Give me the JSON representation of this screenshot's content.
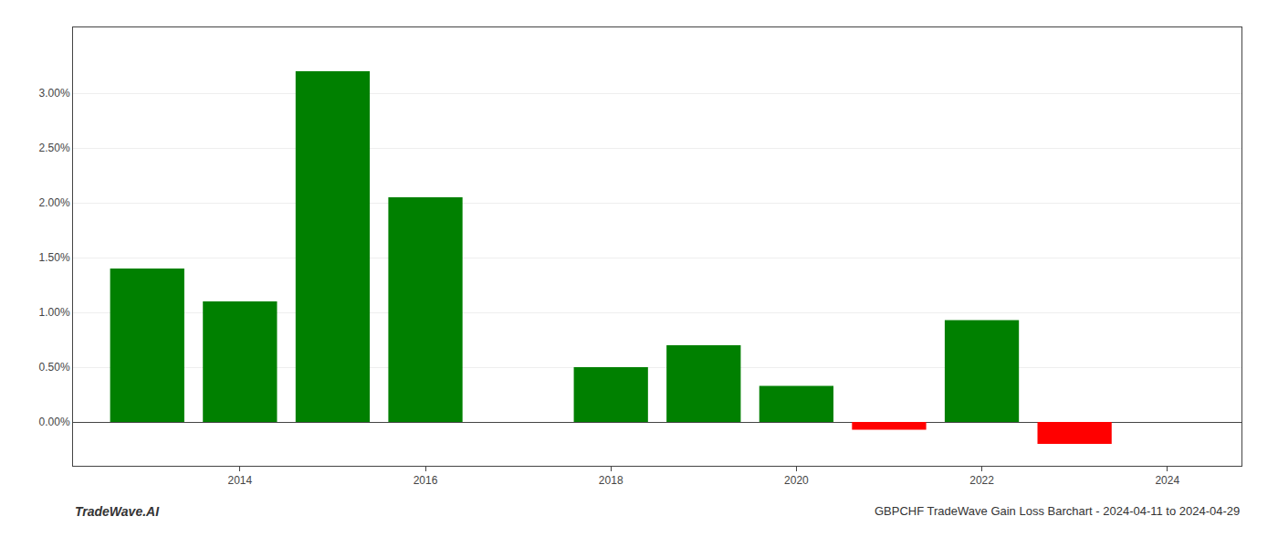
{
  "chart_data": {
    "type": "bar",
    "title": "GBPCHF TradeWave Gain Loss Barchart - 2024-04-11 to 2024-04-29",
    "annotations": [
      {
        "text": "TradeWave.AI"
      }
    ],
    "x": [
      2013,
      2014,
      2015,
      2016,
      2018,
      2019,
      2020,
      2021,
      2022,
      2023
    ],
    "values": [
      0.014,
      0.011,
      0.032,
      0.0205,
      0.005,
      0.007,
      0.0033,
      -0.0007,
      0.0093,
      -0.002
    ],
    "colors": [
      "#008000",
      "#008000",
      "#008000",
      "#008000",
      "#008000",
      "#008000",
      "#008000",
      "#ff0000",
      "#008000",
      "#ff0000"
    ],
    "xlim": [
      2012.2,
      2024.8
    ],
    "xticks": [
      2014,
      2016,
      2018,
      2020,
      2022,
      2024
    ],
    "ylim": [
      -0.004,
      0.036
    ],
    "yticks": [
      {
        "value": 0.0,
        "label": "0.00%"
      },
      {
        "value": 0.005,
        "label": "0.50%"
      },
      {
        "value": 0.01,
        "label": "1.00%"
      },
      {
        "value": 0.015,
        "label": "1.50%"
      },
      {
        "value": 0.02,
        "label": "2.00%"
      },
      {
        "value": 0.025,
        "label": "2.50%"
      },
      {
        "value": 0.03,
        "label": "3.00%"
      }
    ],
    "grid": true
  }
}
